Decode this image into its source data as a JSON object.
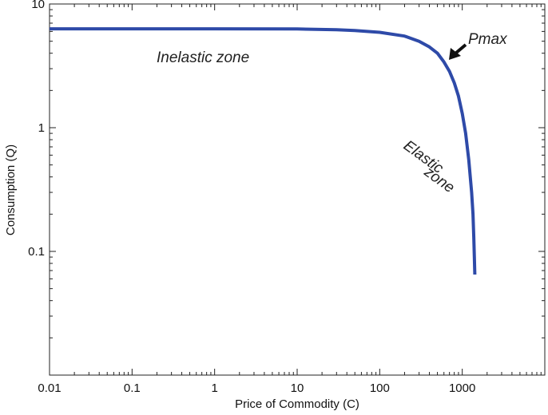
{
  "chart_data": {
    "type": "line",
    "xlabel": "Price of Commodity (C)",
    "ylabel": "Consumption (Q)",
    "x_scale": "log",
    "y_scale": "log",
    "xlim": [
      0.01,
      10000
    ],
    "ylim": [
      0.01,
      10
    ],
    "x_tick_values": [
      0.01,
      0.1,
      1,
      10,
      100,
      1000
    ],
    "x_tick_labels": [
      "0.01",
      "0.1",
      "1",
      "10",
      "100",
      "1000"
    ],
    "y_tick_values": [
      0.1,
      1,
      10
    ],
    "y_tick_labels": [
      "0.1",
      "1",
      "10"
    ],
    "grid": false,
    "legend": "none",
    "series": [
      {
        "color": "#2e4aa8",
        "x": [
          0.01,
          0.1,
          1,
          10,
          30,
          50,
          100,
          200,
          300,
          400,
          500,
          600,
          700,
          800,
          900,
          1000,
          1100,
          1200,
          1300,
          1350,
          1380,
          1400,
          1420
        ],
        "y": [
          6.3,
          6.3,
          6.3,
          6.28,
          6.2,
          6.1,
          5.9,
          5.5,
          5.0,
          4.5,
          4.0,
          3.4,
          2.85,
          2.3,
          1.8,
          1.3,
          0.9,
          0.55,
          0.3,
          0.2,
          0.13,
          0.09,
          0.065
        ]
      }
    ],
    "annotations": {
      "inelastic": "Inelastic zone",
      "pmax": "Pmax",
      "elastic_line1": "Elastic",
      "elastic_line2": "zone"
    }
  }
}
